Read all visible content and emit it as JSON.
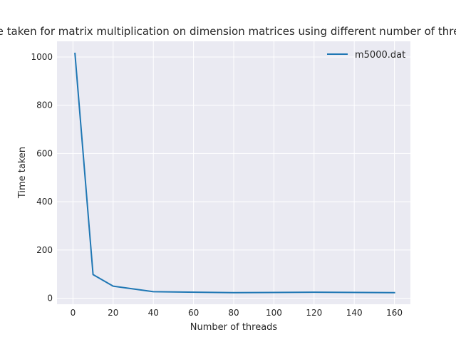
{
  "chart_data": {
    "type": "line",
    "title": "Time taken for matrix multiplication on dimension matrices using different number of threads",
    "xlabel": "Number of threads",
    "ylabel": "Time taken",
    "xlim": [
      -7.95,
      167.95
    ],
    "ylim": [
      -25,
      1065
    ],
    "xticks": [
      0,
      20,
      40,
      60,
      80,
      100,
      120,
      140,
      160
    ],
    "yticks": [
      0,
      200,
      400,
      600,
      800,
      1000
    ],
    "grid": true,
    "legend_position": "top-right",
    "series": [
      {
        "name": "m5000.dat",
        "color": "#1f77b4",
        "x": [
          1,
          10,
          20,
          40,
          80,
          120,
          160
        ],
        "y": [
          1015,
          98,
          50,
          27,
          23,
          25,
          23
        ]
      }
    ]
  },
  "style": {
    "plot_background": "#eaeaf2",
    "grid_color": "#ffffff",
    "text_color": "#262626"
  }
}
